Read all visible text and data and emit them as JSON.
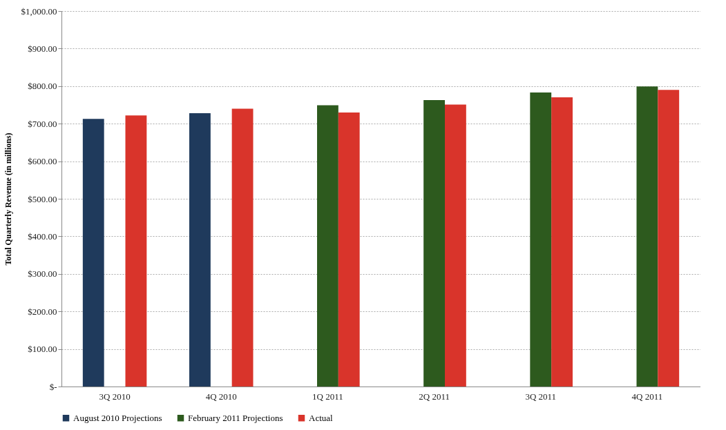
{
  "chart_data": {
    "type": "bar",
    "ylabel": "Total Quarterly Revenue (in millions)",
    "categories": [
      "3Q 2010",
      "4Q 2010",
      "1Q 2011",
      "2Q 2011",
      "3Q 2011",
      "4Q 2011"
    ],
    "series": [
      {
        "name": "August 2010 Projections",
        "color": "#1f3a5c",
        "values": [
          713,
          728,
          null,
          null,
          null,
          null
        ]
      },
      {
        "name": "February 2011 Projections",
        "color": "#2d5a1e",
        "values": [
          null,
          null,
          749,
          763,
          783,
          799
        ]
      },
      {
        "name": "Actual",
        "color": "#d9342b",
        "values": [
          722,
          740,
          730,
          751,
          770,
          790
        ]
      }
    ],
    "ylim": [
      0,
      1000
    ],
    "yticks": [
      {
        "value": 0,
        "label": "$-"
      },
      {
        "value": 100,
        "label": "$100.00"
      },
      {
        "value": 200,
        "label": "$200.00"
      },
      {
        "value": 300,
        "label": "$300.00"
      },
      {
        "value": 400,
        "label": "$400.00"
      },
      {
        "value": 500,
        "label": "$500.00"
      },
      {
        "value": 600,
        "label": "$600.00"
      },
      {
        "value": 700,
        "label": "$700.00"
      },
      {
        "value": 800,
        "label": "$800.00"
      },
      {
        "value": 900,
        "label": "$900.00"
      },
      {
        "value": 1000,
        "label": "$1,000.00"
      }
    ],
    "grid": "y",
    "legend": "bottom"
  }
}
